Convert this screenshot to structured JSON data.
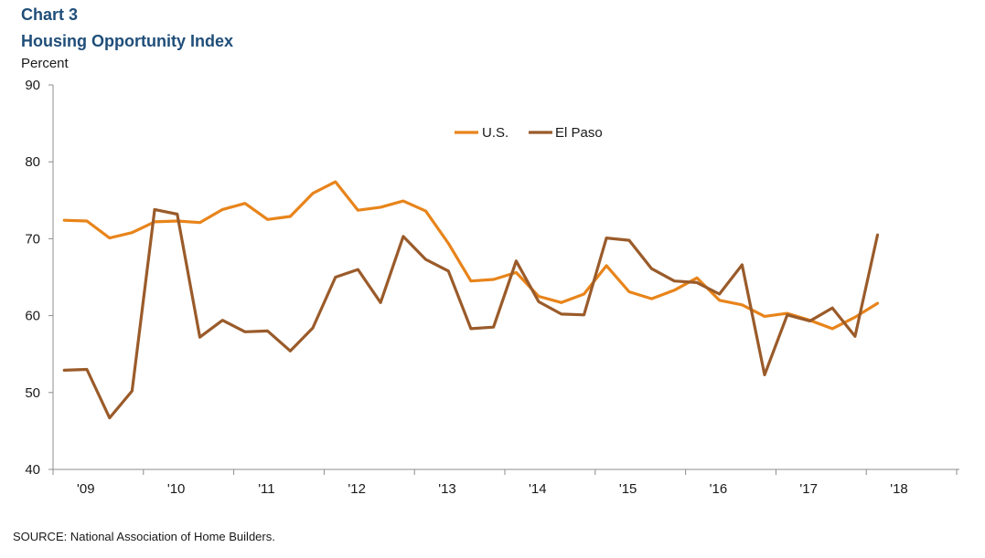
{
  "header": {
    "chart_number": "Chart 3",
    "title": "Housing Opportunity Index",
    "y_unit": "Percent"
  },
  "source": "SOURCE:  National Association of Home Builders.",
  "colors": {
    "us": "#e8841a",
    "el_paso": "#9a5b2a",
    "axis": "#8c8c8c",
    "title": "#1f4e79"
  },
  "chart_data": {
    "type": "line",
    "title": "Housing Opportunity Index",
    "xlabel": "",
    "ylabel": "Percent",
    "ylim": [
      40,
      90
    ],
    "yticks": [
      40,
      50,
      60,
      70,
      80,
      90
    ],
    "grid": false,
    "legend_position": "top-center",
    "x_tick_labels": [
      "'09",
      "'10",
      "'11",
      "'12",
      "'13",
      "'14",
      "'15",
      "'16",
      "'17",
      "'18"
    ],
    "x": [
      "2009Q1",
      "2009Q2",
      "2009Q3",
      "2009Q4",
      "2010Q1",
      "2010Q2",
      "2010Q3",
      "2010Q4",
      "2011Q1",
      "2011Q2",
      "2011Q3",
      "2011Q4",
      "2012Q1",
      "2012Q2",
      "2012Q3",
      "2012Q4",
      "2013Q1",
      "2013Q2",
      "2013Q3",
      "2013Q4",
      "2014Q1",
      "2014Q2",
      "2014Q3",
      "2014Q4",
      "2015Q1",
      "2015Q2",
      "2015Q3",
      "2015Q4",
      "2016Q1",
      "2016Q2",
      "2016Q3",
      "2016Q4",
      "2017Q1",
      "2017Q2",
      "2017Q3",
      "2017Q4",
      "2018Q1"
    ],
    "series": [
      {
        "name": "U.S.",
        "color": "#e8841a",
        "values": [
          72.4,
          72.3,
          70.1,
          70.8,
          72.2,
          72.3,
          72.1,
          73.8,
          74.6,
          72.5,
          72.9,
          75.9,
          77.4,
          73.7,
          74.1,
          74.9,
          73.6,
          69.4,
          64.5,
          64.7,
          65.6,
          62.5,
          61.7,
          62.8,
          66.5,
          63.1,
          62.2,
          63.3,
          64.9,
          62.0,
          61.4,
          59.9,
          60.3,
          59.4,
          58.3,
          59.8,
          61.6
        ]
      },
      {
        "name": "El Paso",
        "color": "#9a5b2a",
        "values": [
          52.9,
          53.0,
          46.7,
          50.2,
          73.8,
          73.2,
          57.2,
          59.4,
          57.9,
          58.0,
          55.4,
          58.4,
          65.0,
          66.0,
          61.7,
          70.3,
          67.3,
          65.8,
          58.3,
          58.5,
          67.1,
          61.8,
          60.2,
          60.1,
          70.1,
          69.8,
          66.1,
          64.5,
          64.3,
          62.8,
          66.6,
          52.3,
          60.1,
          59.3,
          61.0,
          57.3,
          70.5
        ]
      }
    ]
  }
}
